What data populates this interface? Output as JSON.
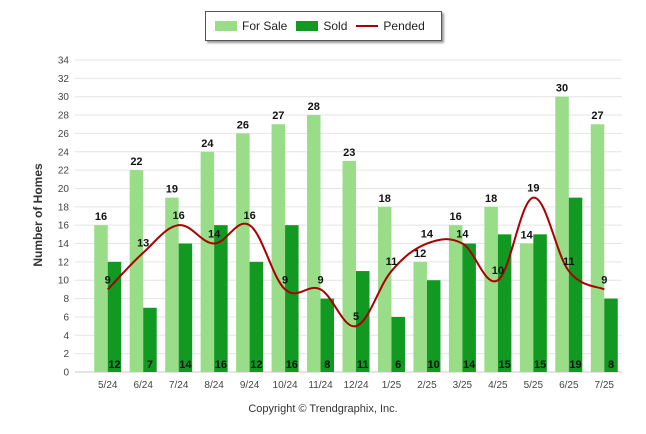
{
  "chart_data": {
    "type": "bar",
    "categories": [
      "5/24",
      "6/24",
      "7/24",
      "8/24",
      "9/24",
      "10/24",
      "11/24",
      "12/24",
      "1/25",
      "2/25",
      "3/25",
      "4/25",
      "5/25",
      "6/25",
      "7/25"
    ],
    "series": [
      {
        "name": "For Sale",
        "type": "bar",
        "color": "#99dd88",
        "values": [
          16,
          22,
          19,
          24,
          26,
          27,
          28,
          23,
          18,
          12,
          16,
          18,
          14,
          30,
          27
        ]
      },
      {
        "name": "Sold",
        "type": "bar",
        "color": "#119922",
        "values": [
          12,
          7,
          14,
          16,
          12,
          16,
          8,
          11,
          6,
          10,
          14,
          15,
          15,
          19,
          8
        ]
      },
      {
        "name": "Pended",
        "type": "line",
        "color": "#aa0000",
        "values": [
          9,
          13,
          16,
          14,
          16,
          9,
          9,
          5,
          11,
          14,
          14,
          10,
          19,
          11,
          9
        ]
      }
    ],
    "ylabel": "Number of Homes",
    "xlabel": "",
    "ylim": [
      0,
      34
    ],
    "yticks": [
      0,
      2,
      4,
      6,
      8,
      10,
      12,
      14,
      16,
      18,
      20,
      22,
      24,
      26,
      28,
      30,
      32,
      34
    ],
    "grid": true,
    "legend_position": "top-center"
  },
  "footer": {
    "copyright": "Copyright © Trendgraphix, Inc."
  }
}
